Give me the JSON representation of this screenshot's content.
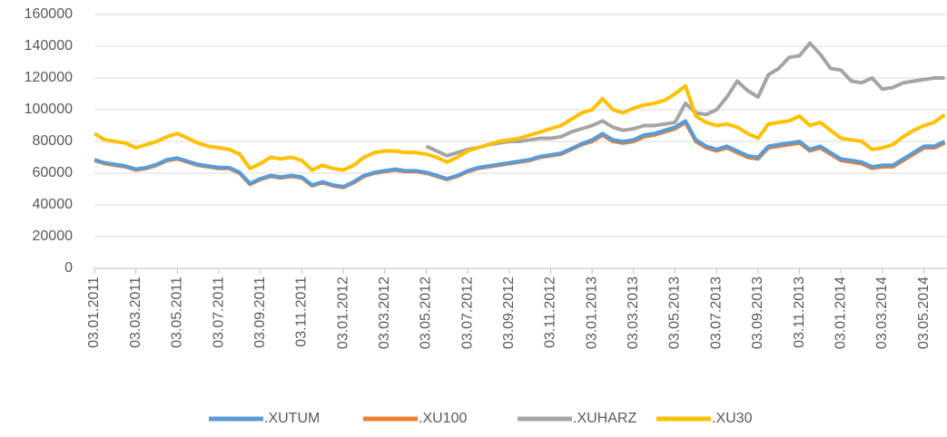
{
  "chart_data": {
    "type": "line",
    "categories": [
      "03.01.2011",
      null,
      null,
      null,
      "03.03.2011",
      null,
      null,
      null,
      "03.05.2011",
      null,
      null,
      null,
      "03.07.2011",
      null,
      null,
      null,
      "03.09.2011",
      null,
      null,
      null,
      "03.11.2011",
      null,
      null,
      null,
      "03.01.2012",
      null,
      null,
      null,
      "03.03.2012",
      null,
      null,
      null,
      "03.05.2012",
      null,
      null,
      null,
      "03.07.2012",
      null,
      null,
      null,
      "03.09.2012",
      null,
      null,
      null,
      "03.11.2012",
      null,
      null,
      null,
      "03.01.2013",
      null,
      null,
      null,
      "03.03.2013",
      null,
      null,
      null,
      "03.05.2013",
      null,
      null,
      null,
      "03.07.2013",
      null,
      null,
      null,
      "03.09.2013",
      null,
      null,
      null,
      "03.11.2013",
      null,
      null,
      null,
      "03.01.2014",
      null,
      null,
      null,
      "03.03.2014",
      null,
      null,
      null,
      "03.05.2014",
      null,
      null
    ],
    "series": [
      {
        "name": ".XUTUM",
        "color": "#5b9bd5",
        "values": [
          68500,
          66500,
          65500,
          64500,
          62500,
          63500,
          65500,
          68500,
          69500,
          67500,
          65500,
          64500,
          63500,
          63500,
          60500,
          53500,
          56500,
          58500,
          57500,
          58500,
          57500,
          52500,
          54500,
          52500,
          51500,
          54500,
          58500,
          60500,
          61500,
          62500,
          61500,
          61500,
          60500,
          58500,
          56500,
          58500,
          61500,
          63500,
          64500,
          65500,
          66500,
          67500,
          68500,
          70500,
          71500,
          72500,
          75500,
          78500,
          81000,
          85000,
          81000,
          80000,
          81000,
          84000,
          85000,
          87000,
          89000,
          93000,
          81000,
          77000,
          75000,
          77000,
          74000,
          71000,
          70000,
          77000,
          78000,
          79000,
          80000,
          75000,
          77000,
          73000,
          69000,
          68000,
          67000,
          64000,
          65000,
          65000,
          69000,
          73000,
          77000,
          77000,
          80000
        ]
      },
      {
        "name": ".XU100",
        "color": "#ed7d31",
        "values": [
          68000,
          66000,
          65000,
          64000,
          62000,
          63000,
          65000,
          68000,
          69000,
          67000,
          65000,
          64000,
          63000,
          63000,
          60000,
          53000,
          56000,
          58000,
          57000,
          58000,
          57000,
          52000,
          54000,
          52000,
          51000,
          54000,
          58000,
          60000,
          61000,
          62000,
          61000,
          61000,
          60000,
          58000,
          56000,
          58000,
          61000,
          63000,
          64000,
          65000,
          66000,
          67000,
          68000,
          70000,
          71000,
          72000,
          75000,
          78000,
          80000,
          84000,
          80000,
          79000,
          80000,
          83000,
          84000,
          86000,
          88000,
          92000,
          80000,
          76000,
          74000,
          76000,
          73000,
          70000,
          69000,
          76000,
          77000,
          78000,
          79000,
          74000,
          76000,
          72000,
          68000,
          67000,
          66000,
          63000,
          64000,
          64000,
          68000,
          72000,
          76000,
          76000,
          79000
        ]
      },
      {
        "name": ".XUHARZ",
        "color": "#a5a5a5",
        "values": [
          null,
          null,
          null,
          null,
          null,
          null,
          null,
          null,
          null,
          null,
          null,
          null,
          null,
          null,
          null,
          null,
          null,
          null,
          null,
          null,
          null,
          null,
          null,
          null,
          null,
          null,
          null,
          null,
          null,
          null,
          null,
          null,
          77000,
          74000,
          71000,
          73000,
          75000,
          76000,
          78000,
          79000,
          80000,
          80000,
          81000,
          82000,
          82000,
          83000,
          86000,
          88000,
          90000,
          93000,
          89000,
          87000,
          88000,
          90000,
          90000,
          91000,
          92000,
          104000,
          98000,
          97000,
          100000,
          108000,
          118000,
          112000,
          108000,
          122000,
          126000,
          133000,
          134000,
          142000,
          135000,
          126000,
          125000,
          118000,
          117000,
          120000,
          113000,
          114000,
          117000,
          118000,
          119000,
          120000,
          120000
        ]
      },
      {
        "name": ".XU30",
        "color": "#ffc000",
        "values": [
          85000,
          81000,
          80000,
          79000,
          76000,
          78000,
          80000,
          83000,
          85000,
          82000,
          79000,
          77000,
          76000,
          75000,
          72000,
          63000,
          66000,
          70000,
          69000,
          70000,
          68000,
          62000,
          65000,
          63000,
          62000,
          65000,
          70000,
          73000,
          74000,
          74000,
          73000,
          73000,
          72000,
          70000,
          67000,
          70000,
          74000,
          76000,
          78000,
          80000,
          81000,
          82000,
          84000,
          86000,
          88000,
          90000,
          94000,
          98000,
          100000,
          107000,
          100000,
          98000,
          101000,
          103000,
          104000,
          106000,
          110000,
          115000,
          96000,
          92000,
          90000,
          91000,
          89000,
          85000,
          82000,
          91000,
          92000,
          93000,
          96000,
          90000,
          92000,
          87000,
          82000,
          81000,
          80000,
          75000,
          76000,
          78000,
          83000,
          87000,
          90000,
          92000,
          97000
        ]
      }
    ],
    "ylim": [
      0,
      160000
    ],
    "yticks": [
      0,
      20000,
      40000,
      60000,
      80000,
      100000,
      120000,
      140000,
      160000
    ],
    "grid": true,
    "legend": "bottom"
  }
}
